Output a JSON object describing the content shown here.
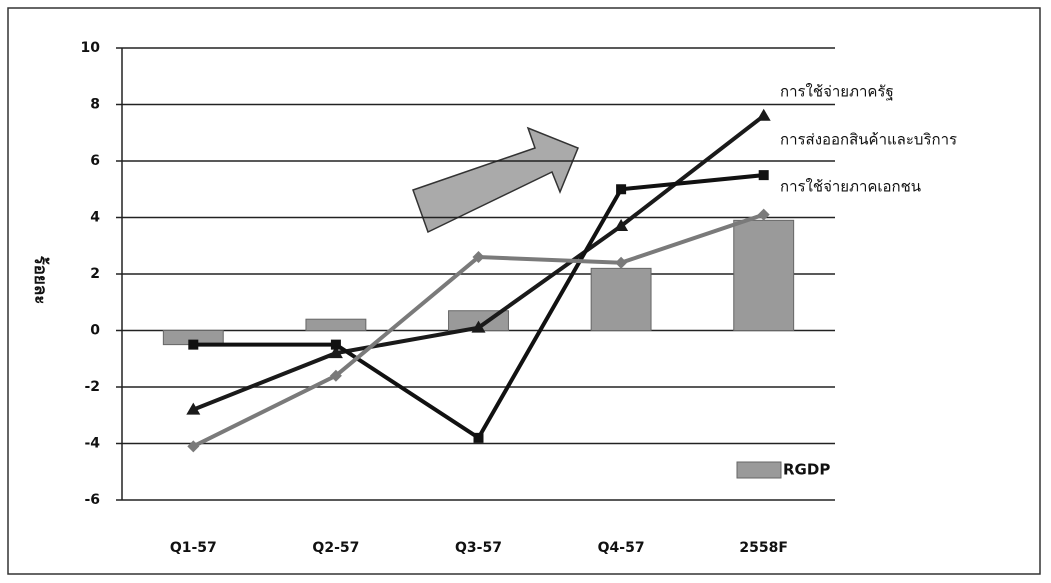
{
  "chart_data": {
    "type": "combo",
    "ylabel": "ร้อยละ",
    "categories": [
      "Q1-57",
      "Q2-57",
      "Q3-57",
      "Q4-57",
      "2558F"
    ],
    "ylim": [
      -6,
      10
    ],
    "yticks": [
      -6,
      -4,
      -2,
      0,
      2,
      4,
      6,
      8,
      10
    ],
    "grid": true,
    "series": [
      {
        "name": "RGDP",
        "type": "bar",
        "color": "#9a9a9a",
        "values": [
          -0.5,
          0.4,
          0.7,
          2.2,
          3.9
        ]
      },
      {
        "name": "การใช้จ่ายภาครัฐ",
        "type": "line",
        "color": "#1a1a1a",
        "marker": "triangle",
        "values": [
          -2.8,
          -0.8,
          0.1,
          3.7,
          7.6
        ]
      },
      {
        "name": "การส่งออกสินค้าและบริการ",
        "type": "line",
        "color": "#111111",
        "marker": "square",
        "values": [
          -0.5,
          -0.5,
          -3.8,
          5.0,
          5.5
        ]
      },
      {
        "name": "การใช้จ่ายภาคเอกชน",
        "type": "line",
        "color": "#7a7a7a",
        "marker": "diamond",
        "values": [
          -4.1,
          -1.6,
          2.6,
          2.4,
          4.1
        ]
      }
    ]
  }
}
